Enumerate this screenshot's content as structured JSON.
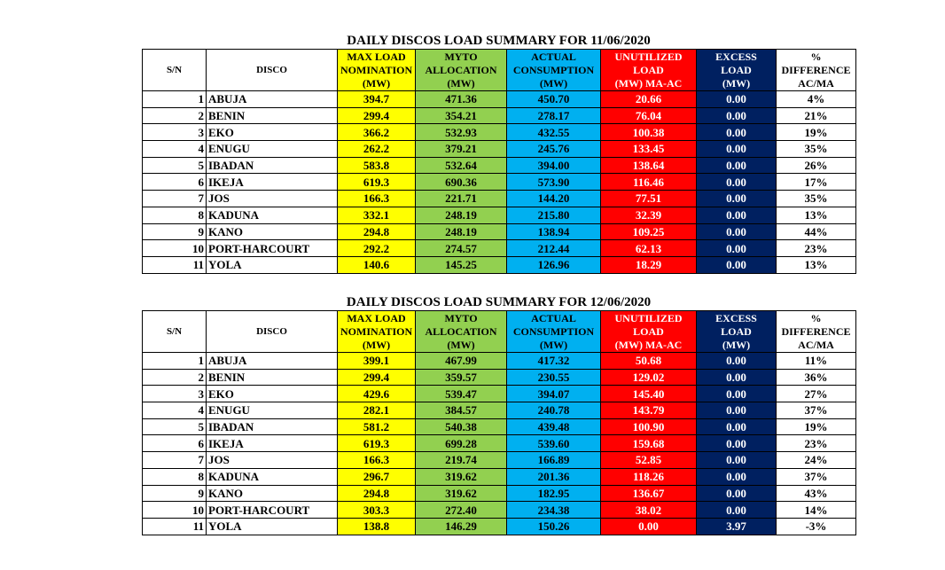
{
  "tables": [
    {
      "title": "DAILY DISCOS LOAD SUMMARY FOR 11/06/2020",
      "headers": [
        [
          "S/N"
        ],
        [
          "DISCO"
        ],
        [
          "MAX LOAD",
          "NOMINATION",
          "(MW)"
        ],
        [
          "MYTO",
          "ALLOCATION",
          "(MW)"
        ],
        [
          "ACTUAL",
          "CONSUMPTION",
          "(MW)"
        ],
        [
          "UNUTILIZED",
          "LOAD",
          "(MW) MA-AC"
        ],
        [
          "EXCESS",
          "LOAD",
          "(MW)"
        ],
        [
          "%",
          "DIFFERENCE",
          "AC/MA"
        ]
      ],
      "rows": [
        [
          "1",
          "ABUJA",
          "394.7",
          "471.36",
          "450.70",
          "20.66",
          "0.00",
          "4%"
        ],
        [
          "2",
          "BENIN",
          "299.4",
          "354.21",
          "278.17",
          "76.04",
          "0.00",
          "21%"
        ],
        [
          "3",
          "EKO",
          "366.2",
          "532.93",
          "432.55",
          "100.38",
          "0.00",
          "19%"
        ],
        [
          "4",
          "ENUGU",
          "262.2",
          "379.21",
          "245.76",
          "133.45",
          "0.00",
          "35%"
        ],
        [
          "5",
          "IBADAN",
          "583.8",
          "532.64",
          "394.00",
          "138.64",
          "0.00",
          "26%"
        ],
        [
          "6",
          "IKEJA",
          "619.3",
          "690.36",
          "573.90",
          "116.46",
          "0.00",
          "17%"
        ],
        [
          "7",
          "JOS",
          "166.3",
          "221.71",
          "144.20",
          "77.51",
          "0.00",
          "35%"
        ],
        [
          "8",
          "KADUNA",
          "332.1",
          "248.19",
          "215.80",
          "32.39",
          "0.00",
          "13%"
        ],
        [
          "9",
          "KANO",
          "294.8",
          "248.19",
          "138.94",
          "109.25",
          "0.00",
          "44%"
        ],
        [
          "10",
          "PORT-HARCOURT",
          "292.2",
          "274.57",
          "212.44",
          "62.13",
          "0.00",
          "23%"
        ],
        [
          "11",
          "YOLA",
          "140.6",
          "145.25",
          "126.96",
          "18.29",
          "0.00",
          "13%"
        ]
      ]
    },
    {
      "title": "DAILY DISCOS LOAD SUMMARY FOR 12/06/2020",
      "headers": [
        [
          "S/N"
        ],
        [
          "DISCO"
        ],
        [
          "MAX LOAD",
          "NOMINATION",
          "(MW)"
        ],
        [
          "MYTO",
          "ALLOCATION",
          "(MW)"
        ],
        [
          "ACTUAL",
          "CONSUMPTION",
          "(MW)"
        ],
        [
          "UNUTILIZED",
          "LOAD",
          "(MW) MA-AC"
        ],
        [
          "EXCESS",
          "LOAD",
          "(MW)"
        ],
        [
          "%",
          "DIFFERENCE",
          "AC/MA"
        ]
      ],
      "rows": [
        [
          "1",
          "ABUJA",
          "399.1",
          "467.99",
          "417.32",
          "50.68",
          "0.00",
          "11%"
        ],
        [
          "2",
          "BENIN",
          "299.4",
          "359.57",
          "230.55",
          "129.02",
          "0.00",
          "36%"
        ],
        [
          "3",
          "EKO",
          "429.6",
          "539.47",
          "394.07",
          "145.40",
          "0.00",
          "27%"
        ],
        [
          "4",
          "ENUGU",
          "282.1",
          "384.57",
          "240.78",
          "143.79",
          "0.00",
          "37%"
        ],
        [
          "5",
          "IBADAN",
          "581.2",
          "540.38",
          "439.48",
          "100.90",
          "0.00",
          "19%"
        ],
        [
          "6",
          "IKEJA",
          "619.3",
          "699.28",
          "539.60",
          "159.68",
          "0.00",
          "23%"
        ],
        [
          "7",
          "JOS",
          "166.3",
          "219.74",
          "166.89",
          "52.85",
          "0.00",
          "24%"
        ],
        [
          "8",
          "KADUNA",
          "296.7",
          "319.62",
          "201.36",
          "118.26",
          "0.00",
          "37%"
        ],
        [
          "9",
          "KANO",
          "294.8",
          "319.62",
          "182.95",
          "136.67",
          "0.00",
          "43%"
        ],
        [
          "10",
          "PORT-HARCOURT",
          "303.3",
          "272.40",
          "234.38",
          "38.02",
          "0.00",
          "14%"
        ],
        [
          "11",
          "YOLA",
          "138.8",
          "146.29",
          "150.26",
          "0.00",
          "3.97",
          "-3%"
        ]
      ]
    }
  ]
}
